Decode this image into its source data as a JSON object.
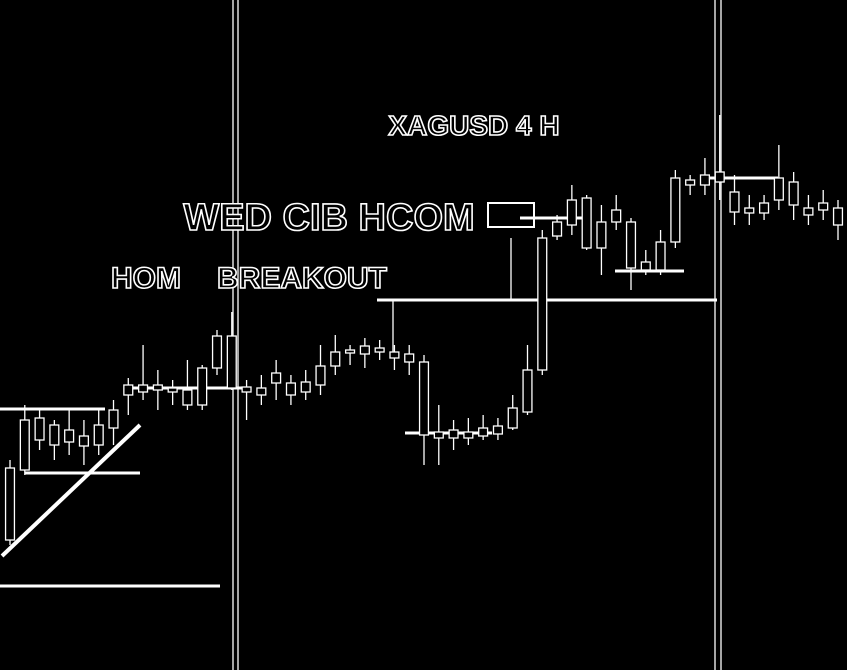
{
  "chart_data": {
    "type": "candlestick",
    "title": "XAGUSD 4 H",
    "annotations": [
      "WED CIB HCOM",
      "HOM",
      "BREAKOUT"
    ],
    "categories": [
      null,
      null,
      null,
      null,
      null,
      null,
      null,
      null,
      null,
      null,
      null,
      null,
      null,
      null,
      null,
      null,
      null,
      null,
      null,
      null,
      null,
      null,
      null,
      null,
      null,
      null,
      null,
      null,
      null,
      null,
      null,
      null,
      null,
      null,
      null,
      null,
      null,
      null,
      null,
      null,
      null,
      null,
      null,
      null,
      null,
      null,
      null,
      null,
      null,
      null,
      null,
      null,
      null,
      null,
      null,
      null,
      null
    ],
    "open": [
      130,
      200,
      252,
      245,
      228,
      234,
      225,
      242,
      275,
      278,
      285,
      282,
      280,
      265,
      302,
      334,
      278,
      275,
      287,
      287,
      278,
      285,
      304,
      320,
      324,
      318,
      318,
      316,
      308,
      232,
      232,
      238,
      234,
      236,
      242,
      258,
      300,
      434,
      445,
      472,
      422,
      460,
      448,
      408,
      400,
      428,
      490,
      485,
      488,
      478,
      462,
      457,
      470,
      488,
      462,
      460,
      462
    ],
    "high": [
      210,
      265,
      260,
      250,
      260,
      250,
      260,
      270,
      292,
      325,
      300,
      290,
      310,
      305,
      340,
      358,
      290,
      295,
      310,
      295,
      300,
      325,
      335,
      325,
      332,
      330,
      325,
      325,
      315,
      265,
      250,
      252,
      255,
      252,
      275,
      325,
      440,
      455,
      485,
      475,
      465,
      475,
      452,
      420,
      440,
      500,
      495,
      512,
      555,
      495,
      475,
      475,
      525,
      498,
      475,
      480,
      470
    ],
    "low": [
      125,
      195,
      220,
      210,
      215,
      205,
      215,
      225,
      255,
      270,
      260,
      265,
      260,
      260,
      295,
      280,
      250,
      265,
      270,
      265,
      270,
      275,
      295,
      305,
      302,
      310,
      300,
      295,
      205,
      205,
      220,
      225,
      230,
      230,
      240,
      255,
      295,
      430,
      435,
      420,
      395,
      440,
      380,
      395,
      395,
      422,
      475,
      475,
      470,
      445,
      445,
      450,
      460,
      450,
      445,
      450,
      430
    ],
    "close": [
      202,
      250,
      230,
      225,
      240,
      224,
      245,
      260,
      285,
      285,
      280,
      278,
      265,
      302,
      334,
      282,
      283,
      282,
      297,
      275,
      288,
      304,
      318,
      317,
      316,
      322,
      312,
      308,
      235,
      238,
      240,
      232,
      242,
      244,
      262,
      300,
      432,
      448,
      470,
      422,
      448,
      448,
      402,
      400,
      428,
      492,
      485,
      495,
      498,
      458,
      457,
      467,
      492,
      465,
      455,
      467,
      445
    ],
    "color": "#ffffff",
    "ylim": [
      0,
      670
    ]
  }
}
